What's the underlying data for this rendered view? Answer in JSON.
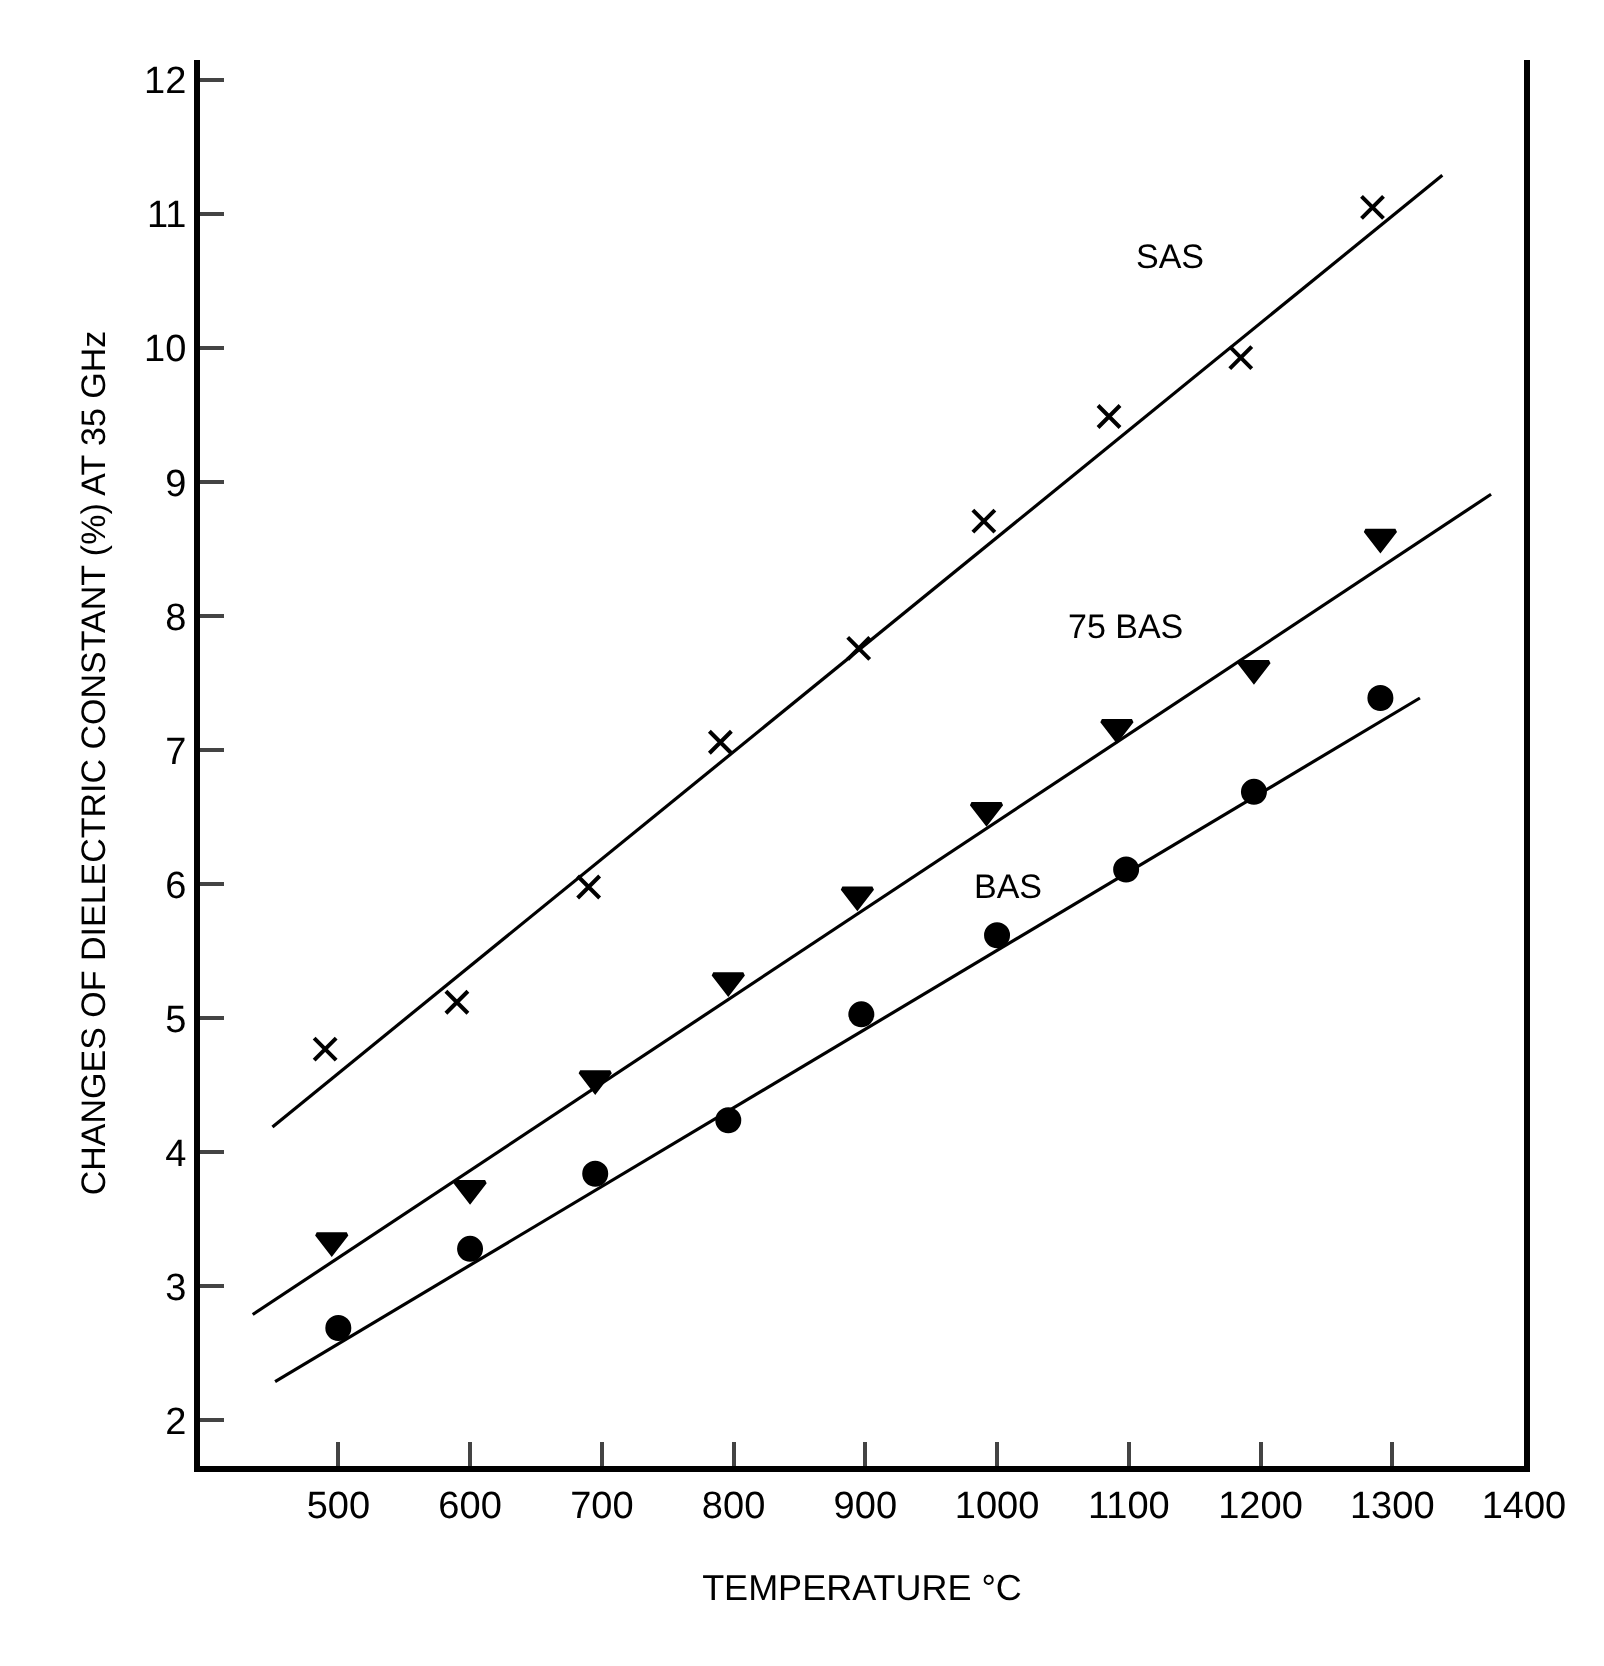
{
  "chart_data": {
    "type": "scatter",
    "xlabel": "TEMPERATURE °C",
    "ylabel": "CHANGES OF DIELECTRIC CONSTANT (%) AT 35 GHz",
    "xlim": [
      395,
      1400
    ],
    "ylim": [
      1.66,
      12.15
    ],
    "xticks": [
      500,
      600,
      700,
      800,
      900,
      1000,
      1100,
      1200,
      1300,
      1400
    ],
    "yticks": [
      2,
      3,
      4,
      5,
      6,
      7,
      8,
      9,
      10,
      11,
      12
    ],
    "legend": false,
    "series": [
      {
        "name": "SAS",
        "marker": "cross",
        "color": "#000000",
        "x": [
          490,
          590,
          690,
          790,
          895,
          990,
          1085,
          1185,
          1285
        ],
        "values": [
          4.77,
          5.12,
          5.98,
          7.06,
          7.76,
          8.71,
          9.49,
          9.93,
          11.05
        ]
      },
      {
        "name": "75 BAS",
        "marker": "triangle",
        "color": "#000000",
        "x": [
          495,
          600,
          695,
          796,
          894,
          992,
          1091,
          1195,
          1291
        ],
        "values": [
          3.34,
          3.73,
          4.55,
          5.28,
          5.92,
          6.55,
          7.17,
          7.61,
          8.59
        ]
      },
      {
        "name": "BAS",
        "marker": "circle",
        "color": "#000000",
        "x": [
          500,
          600,
          695,
          796,
          897,
          1000,
          1098,
          1195,
          1291
        ],
        "values": [
          2.69,
          3.28,
          3.84,
          4.24,
          5.03,
          5.62,
          6.11,
          6.69,
          7.39
        ]
      },
      {
        "type": "line",
        "marker": "none",
        "line_style": "solid",
        "color": "#000000",
        "x": [
          450,
          1338
        ],
        "values": [
          4.19,
          11.29
        ]
      },
      {
        "type": "line",
        "marker": "none",
        "line_style": "solid",
        "color": "#000000",
        "x": [
          435,
          1375
        ],
        "values": [
          2.79,
          8.91
        ]
      },
      {
        "type": "line",
        "marker": "none",
        "line_style": "solid",
        "color": "#000000",
        "x": [
          452,
          1321
        ],
        "values": [
          2.29,
          7.39
        ]
      }
    ]
  }
}
